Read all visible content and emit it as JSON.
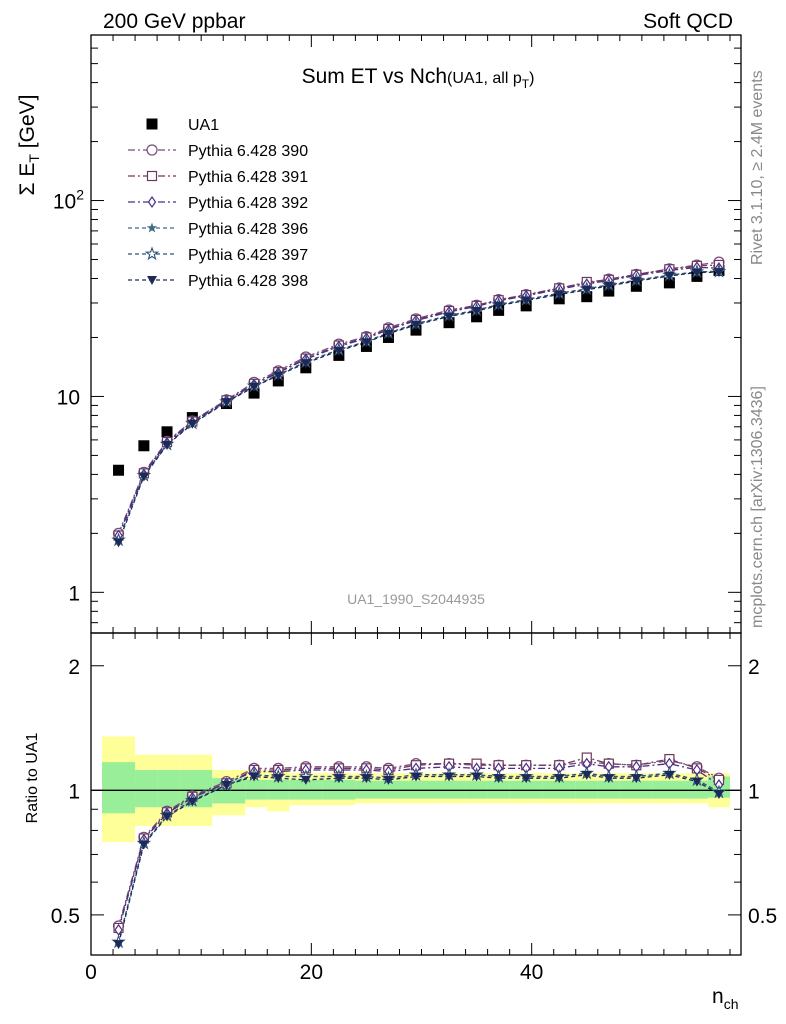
{
  "header": {
    "left": "200 GeV ppbar",
    "right": "Soft QCD"
  },
  "title": {
    "main": "Sum ET vs Nch",
    "sub_prefix": "(UA1, all p",
    "sub_subscript": "T",
    "sub_suffix": ")"
  },
  "side_text": {
    "rivet": "Rivet 3.1.10, ≥ 2.4M events",
    "mcplots": "mcplots.cern.ch [arXiv:1306.3436]"
  },
  "watermark": "UA1_1990_S2044935",
  "axes": {
    "ylabel_main": "Σ E",
    "ylabel_main_sub": "T",
    "ylabel_main_unit": " [GeV]",
    "ylabel_ratio": "Ratio to UA1",
    "xlabel": "n",
    "xlabel_sub": "ch",
    "main_yticks": [
      {
        "v": 1,
        "label": "1"
      },
      {
        "v": 10,
        "label": "10"
      },
      {
        "v": 100,
        "label": "10",
        "sup": "2"
      }
    ],
    "ratio_yticks": [
      {
        "v": 0.5,
        "label": "0.5"
      },
      {
        "v": 1,
        "label": "1"
      },
      {
        "v": 2,
        "label": "2"
      }
    ],
    "xticks": [
      {
        "v": 0,
        "label": "0"
      },
      {
        "v": 20,
        "label": "20"
      },
      {
        "v": 40,
        "label": "40"
      }
    ]
  },
  "colors": {
    "band_inner": "#99ee99",
    "band_outer": "#ffff99",
    "data": "#000000"
  },
  "chart_data": [
    {
      "type": "scatter",
      "panel": "main",
      "xlim": [
        0,
        59
      ],
      "ylim": [
        0.62,
        700
      ],
      "yscale": "log",
      "legend_position": "top-left",
      "x": [
        2.5,
        4.8,
        6.9,
        9.2,
        12.3,
        14.8,
        17.0,
        19.5,
        22.5,
        25.0,
        27.0,
        29.5,
        32.5,
        35.0,
        37.0,
        39.5,
        42.5,
        45.0,
        47.0,
        49.5,
        52.5,
        55.0,
        57.0
      ],
      "series": [
        {
          "name": "UA1",
          "marker": "square-filled",
          "color": "#000000",
          "line": "none",
          "values": [
            4.2,
            5.6,
            6.6,
            7.8,
            9.2,
            10.4,
            12.0,
            14.0,
            16.2,
            18.0,
            20.0,
            21.8,
            23.8,
            25.5,
            27.5,
            29.0,
            31.5,
            32.3,
            34.5,
            36.5,
            38.0,
            41.0,
            44.0
          ]
        },
        {
          "name": "Pythia 6.428 390",
          "marker": "circle-open",
          "color": "#7a4a80",
          "dash": "7,3,2,3",
          "values": [
            2.0,
            4.1,
            5.9,
            7.5,
            9.6,
            11.8,
            13.5,
            15.9,
            18.5,
            20.2,
            22.4,
            24.9,
            27.6,
            29.2,
            31.2,
            33.1,
            35.8,
            37.9,
            39.7,
            42.0,
            44.8,
            46.8,
            48.5
          ]
        },
        {
          "name": "Pythia 6.428 391",
          "marker": "square-open",
          "color": "#6e3a58",
          "dash": "7,3,2,3",
          "values": [
            1.95,
            4.05,
            5.85,
            7.45,
            9.55,
            11.6,
            13.3,
            15.6,
            18.2,
            20.0,
            22.1,
            24.6,
            27.3,
            29.0,
            31.0,
            32.9,
            35.6,
            38.4,
            39.4,
            41.8,
            44.6,
            46.4,
            46.9
          ]
        },
        {
          "name": "Pythia 6.428 392",
          "marker": "diamond-open",
          "color": "#4a2f8a",
          "dash": "7,3,2,3",
          "values": [
            1.95,
            4.0,
            5.8,
            7.4,
            9.5,
            11.5,
            13.2,
            15.5,
            18.0,
            19.8,
            21.9,
            24.4,
            27.0,
            28.8,
            30.8,
            32.6,
            35.3,
            37.4,
            39.1,
            41.4,
            44.0,
            45.6,
            45.2
          ]
        },
        {
          "name": "Pythia 6.428 396",
          "marker": "star-filled",
          "color": "#3e6b84",
          "dash": "4,3",
          "values": [
            1.85,
            3.95,
            5.7,
            7.3,
            9.4,
            11.3,
            12.9,
            15.0,
            17.3,
            19.1,
            21.1,
            23.5,
            25.9,
            27.6,
            29.4,
            31.2,
            33.6,
            35.4,
            37.1,
            39.2,
            41.6,
            43.3,
            43.5
          ]
        },
        {
          "name": "Pythia 6.428 397",
          "marker": "star-open",
          "color": "#2f5478",
          "dash": "4,3",
          "values": [
            1.85,
            3.95,
            5.7,
            7.3,
            9.4,
            11.3,
            12.9,
            15.0,
            17.3,
            19.1,
            21.1,
            23.5,
            25.9,
            27.6,
            29.4,
            31.2,
            33.6,
            35.4,
            37.1,
            39.2,
            41.6,
            43.3,
            43.5
          ]
        },
        {
          "name": "Pythia 6.428 398",
          "marker": "triangle-down-filled",
          "color": "#1c2a5a",
          "dash": "4,3",
          "values": [
            1.8,
            3.9,
            5.65,
            7.25,
            9.35,
            11.2,
            12.8,
            14.8,
            17.1,
            18.9,
            20.9,
            23.2,
            25.6,
            27.3,
            29.1,
            30.9,
            33.2,
            35.0,
            36.7,
            38.8,
            41.2,
            42.9,
            43.1
          ]
        }
      ]
    },
    {
      "type": "scatter",
      "panel": "ratio",
      "xlim": [
        0,
        59
      ],
      "ylim": [
        0.4,
        2.4
      ],
      "yscale": "log",
      "reference_line": 1,
      "bins": [
        [
          1,
          4
        ],
        [
          4,
          6
        ],
        [
          6,
          8
        ],
        [
          8,
          11
        ],
        [
          11,
          14
        ],
        [
          14,
          16
        ],
        [
          16,
          18
        ],
        [
          18,
          21
        ],
        [
          21,
          24
        ],
        [
          24,
          26
        ],
        [
          26,
          28
        ],
        [
          28,
          31
        ],
        [
          31,
          34
        ],
        [
          34,
          36
        ],
        [
          36,
          38
        ],
        [
          38,
          41
        ],
        [
          41,
          44
        ],
        [
          44,
          46
        ],
        [
          46,
          48
        ],
        [
          48,
          51
        ],
        [
          51,
          54
        ],
        [
          54,
          56
        ],
        [
          56,
          58
        ]
      ],
      "band_inner": [
        [
          0.88,
          1.17
        ],
        [
          0.91,
          1.12
        ],
        [
          0.91,
          1.12
        ],
        [
          0.91,
          1.12
        ],
        [
          0.93,
          1.07
        ],
        [
          0.95,
          1.06
        ],
        [
          0.95,
          1.06
        ],
        [
          0.95,
          1.06
        ],
        [
          0.95,
          1.06
        ],
        [
          0.955,
          1.055
        ],
        [
          0.955,
          1.055
        ],
        [
          0.955,
          1.055
        ],
        [
          0.955,
          1.055
        ],
        [
          0.955,
          1.055
        ],
        [
          0.955,
          1.055
        ],
        [
          0.955,
          1.055
        ],
        [
          0.955,
          1.055
        ],
        [
          0.955,
          1.055
        ],
        [
          0.955,
          1.055
        ],
        [
          0.955,
          1.055
        ],
        [
          0.955,
          1.055
        ],
        [
          0.955,
          1.055
        ],
        [
          0.96,
          1.08
        ]
      ],
      "band_outer": [
        [
          0.75,
          1.35
        ],
        [
          0.82,
          1.22
        ],
        [
          0.82,
          1.22
        ],
        [
          0.82,
          1.22
        ],
        [
          0.87,
          1.12
        ],
        [
          0.91,
          1.12
        ],
        [
          0.89,
          1.12
        ],
        [
          0.92,
          1.1
        ],
        [
          0.92,
          1.1
        ],
        [
          0.93,
          1.1
        ],
        [
          0.93,
          1.1
        ],
        [
          0.93,
          1.1
        ],
        [
          0.93,
          1.1
        ],
        [
          0.93,
          1.1
        ],
        [
          0.93,
          1.1
        ],
        [
          0.93,
          1.1
        ],
        [
          0.93,
          1.1
        ],
        [
          0.93,
          1.1
        ],
        [
          0.93,
          1.1
        ],
        [
          0.93,
          1.1
        ],
        [
          0.93,
          1.1
        ],
        [
          0.93,
          1.1
        ],
        [
          0.91,
          1.1
        ]
      ],
      "x": [
        2.5,
        4.8,
        6.9,
        9.2,
        12.3,
        14.8,
        17.0,
        19.5,
        22.5,
        25.0,
        27.0,
        29.5,
        32.5,
        35.0,
        37.0,
        39.5,
        42.5,
        45.0,
        47.0,
        49.5,
        52.5,
        55.0,
        57.0
      ],
      "series": [
        {
          "name": "Pythia 6.428 390",
          "values": [
            0.47,
            0.77,
            0.89,
            0.97,
            1.05,
            1.13,
            1.13,
            1.14,
            1.14,
            1.14,
            1.13,
            1.16,
            1.16,
            1.15,
            1.15,
            1.15,
            1.15,
            1.17,
            1.16,
            1.15,
            1.18,
            1.14,
            1.07
          ]
        },
        {
          "name": "Pythia 6.428 391",
          "values": [
            0.465,
            0.765,
            0.885,
            0.965,
            1.04,
            1.12,
            1.12,
            1.13,
            1.13,
            1.13,
            1.12,
            1.15,
            1.16,
            1.16,
            1.15,
            1.15,
            1.15,
            1.2,
            1.16,
            1.15,
            1.19,
            1.13,
            1.06
          ]
        },
        {
          "name": "Pythia 6.428 392",
          "values": [
            0.46,
            0.76,
            0.88,
            0.96,
            1.04,
            1.11,
            1.11,
            1.12,
            1.12,
            1.12,
            1.11,
            1.13,
            1.14,
            1.13,
            1.13,
            1.13,
            1.13,
            1.16,
            1.14,
            1.14,
            1.16,
            1.12,
            1.03
          ]
        },
        {
          "name": "Pythia 6.428 396",
          "values": [
            0.43,
            0.745,
            0.87,
            0.945,
            1.03,
            1.09,
            1.08,
            1.08,
            1.08,
            1.08,
            1.07,
            1.09,
            1.09,
            1.09,
            1.08,
            1.08,
            1.08,
            1.1,
            1.08,
            1.08,
            1.1,
            1.06,
            0.99
          ]
        },
        {
          "name": "Pythia 6.428 397",
          "values": [
            0.43,
            0.745,
            0.87,
            0.945,
            1.03,
            1.09,
            1.08,
            1.08,
            1.08,
            1.08,
            1.07,
            1.09,
            1.09,
            1.09,
            1.08,
            1.08,
            1.08,
            1.1,
            1.08,
            1.08,
            1.1,
            1.06,
            0.99
          ]
        },
        {
          "name": "Pythia 6.428 398",
          "values": [
            0.425,
            0.74,
            0.865,
            0.94,
            1.03,
            1.08,
            1.07,
            1.06,
            1.07,
            1.07,
            1.06,
            1.08,
            1.08,
            1.08,
            1.07,
            1.07,
            1.07,
            1.09,
            1.07,
            1.07,
            1.09,
            1.05,
            0.98
          ]
        }
      ]
    }
  ]
}
